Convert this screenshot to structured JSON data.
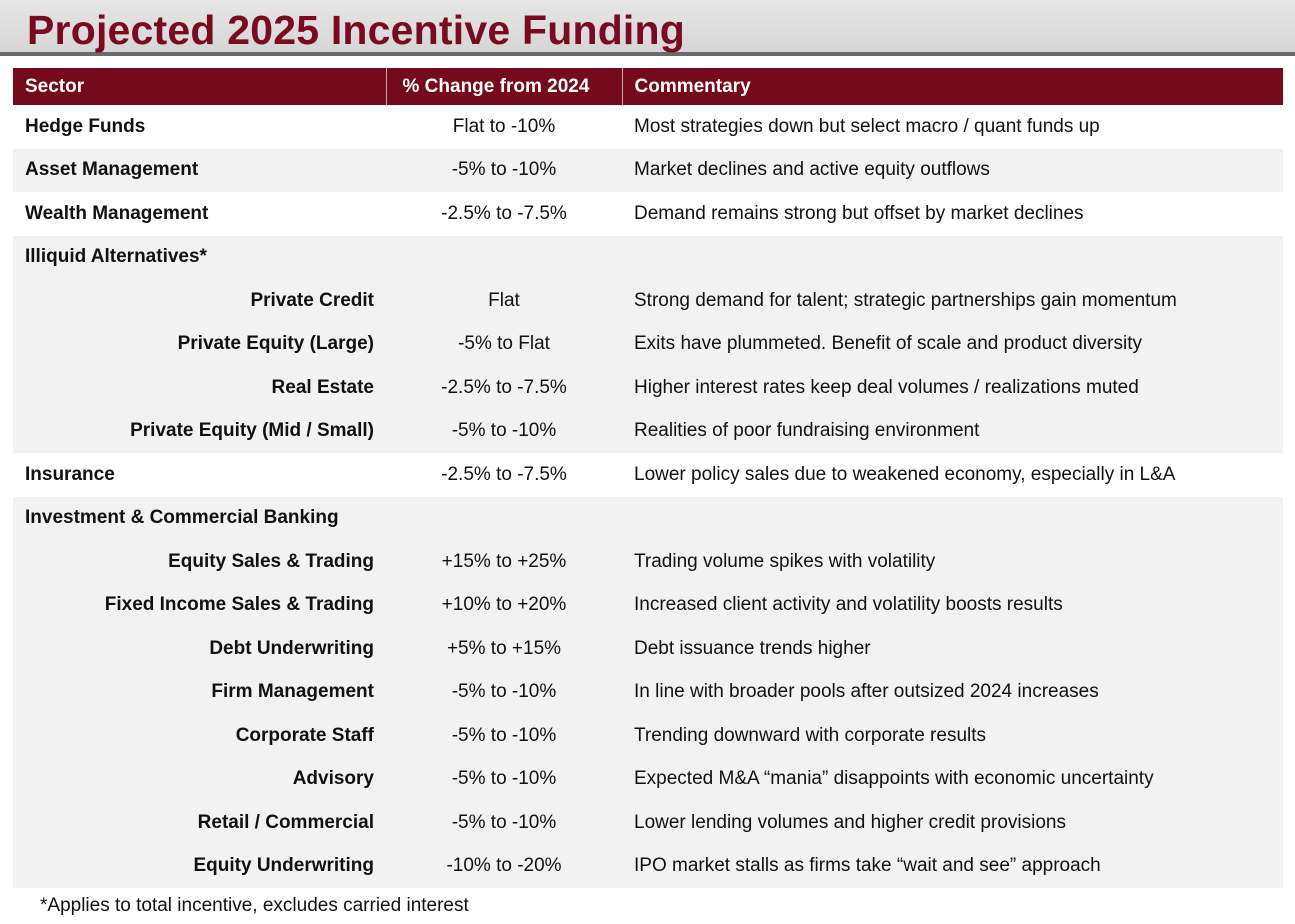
{
  "title": "Projected 2025 Incentive Funding",
  "colors": {
    "accent": "#750a1d",
    "title": "#7a0a1e",
    "shade": "#f2f2f2"
  },
  "table": {
    "headers": [
      "Sector",
      "% Change from 2024",
      "Commentary"
    ],
    "rows": [
      {
        "sector": "Hedge Funds",
        "change": "Flat to -10%",
        "commentary": "Most strategies down but select macro / quant funds up"
      },
      {
        "sector": "Asset Management",
        "change": "-5% to -10%",
        "commentary": "Market declines and active equity outflows"
      },
      {
        "sector": "Wealth Management",
        "change": "-2.5% to -7.5%",
        "commentary": "Demand remains strong but offset by market declines"
      },
      {
        "sector": "Illiquid Alternatives*",
        "change": "",
        "commentary": ""
      },
      {
        "sector": "Private Credit",
        "change": "Flat",
        "commentary": "Strong demand for talent; strategic partnerships gain momentum"
      },
      {
        "sector": "Private Equity (Large)",
        "change": "-5% to Flat",
        "commentary": "Exits have plummeted. Benefit of scale and product diversity"
      },
      {
        "sector": "Real Estate",
        "change": "-2.5% to -7.5%",
        "commentary": "Higher interest rates keep deal volumes / realizations muted"
      },
      {
        "sector": "Private Equity (Mid / Small)",
        "change": "-5% to -10%",
        "commentary": "Realities of poor fundraising environment"
      },
      {
        "sector": "Insurance",
        "change": "-2.5% to -7.5%",
        "commentary": "Lower policy sales due to weakened economy, especially in L&A"
      },
      {
        "sector": "Investment & Commercial Banking",
        "change": "",
        "commentary": ""
      },
      {
        "sector": "Equity Sales & Trading",
        "change": "+15% to +25%",
        "commentary": "Trading volume spikes with volatility"
      },
      {
        "sector": "Fixed Income Sales & Trading",
        "change": "+10% to +20%",
        "commentary": "Increased client activity and volatility boosts results"
      },
      {
        "sector": "Debt Underwriting",
        "change": "+5% to +15%",
        "commentary": "Debt issuance trends higher"
      },
      {
        "sector": "Firm Management",
        "change": "-5% to -10%",
        "commentary": "In line with broader pools after outsized 2024 increases"
      },
      {
        "sector": "Corporate Staff",
        "change": "-5% to -10%",
        "commentary": "Trending downward with corporate results"
      },
      {
        "sector": "Advisory",
        "change": "-5% to -10%",
        "commentary": "Expected M&A “mania” disappoints with economic uncertainty"
      },
      {
        "sector": "Retail / Commercial",
        "change": "-5% to -10%",
        "commentary": "Lower lending volumes and higher credit provisions"
      },
      {
        "sector": "Equity Underwriting",
        "change": "-10% to -20%",
        "commentary": "IPO market stalls as firms take “wait and see” approach"
      }
    ]
  },
  "footnote": "*Applies to total incentive, excludes carried interest"
}
